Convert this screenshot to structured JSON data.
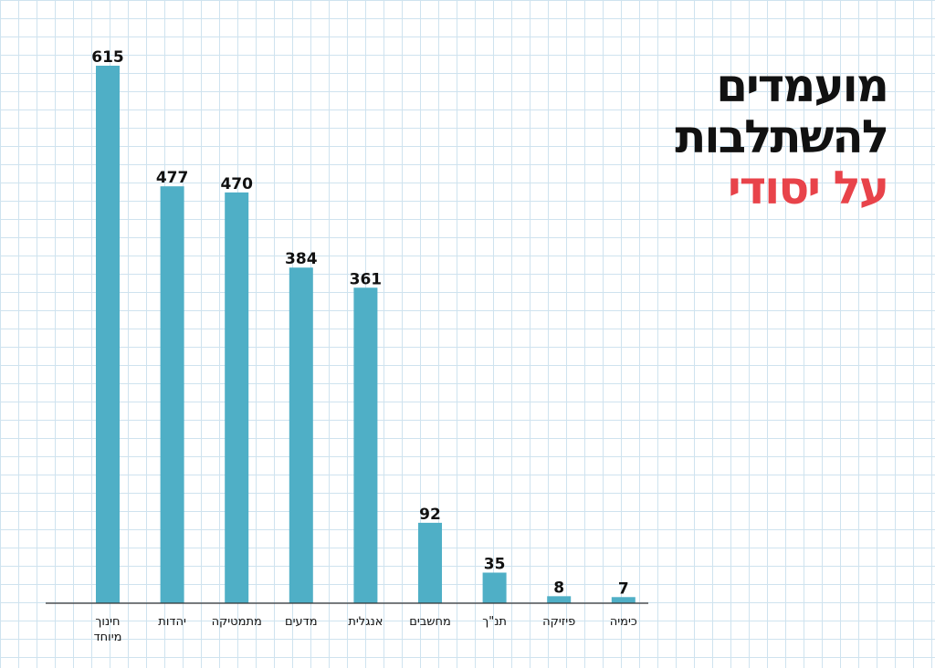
{
  "title": {
    "line1": "מועמדים",
    "line2": "להשתלבות",
    "line3": "על יסודי",
    "accent_color": "#e8434a"
  },
  "chart_data": {
    "type": "bar",
    "categories": [
      [
        "חינוך",
        "מיוחד"
      ],
      [
        "יהדות"
      ],
      [
        "מתמטיקה"
      ],
      [
        "מדעים"
      ],
      [
        "אנגלית"
      ],
      [
        "מחשבים"
      ],
      [
        "תנ\"ך"
      ],
      [
        "פיזיקה"
      ],
      [
        "כימיה"
      ]
    ],
    "values": [
      615,
      477,
      470,
      384,
      361,
      92,
      35,
      8,
      7
    ],
    "bar_color": "#4fafc6",
    "ylim": [
      0,
      615
    ],
    "grid": true,
    "xlabel": "",
    "ylabel": ""
  }
}
